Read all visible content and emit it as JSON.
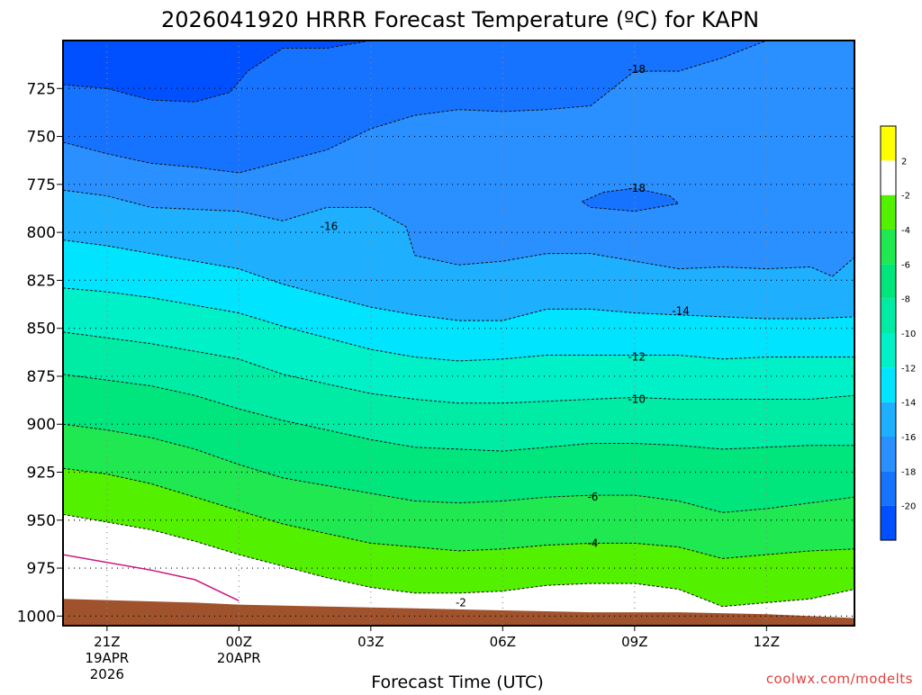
{
  "title": "2026041920 HRRR Forecast Temperature (ºC) for KAPN",
  "credit": "coolwx.com/modelts",
  "chart_data": {
    "type": "contour",
    "title": "2026041920 HRRR Forecast Temperature (ºC) for KAPN",
    "xlabel": "Forecast Time (UTC)",
    "ylabel": "",
    "x_unit": "hours after 19APR2026 20Z",
    "xlim": [
      0,
      18
    ],
    "y_unit": "hPa",
    "ylim": [
      1005,
      700
    ],
    "grid": true,
    "y_ticks": [
      725,
      750,
      775,
      800,
      825,
      850,
      875,
      900,
      925,
      950,
      975,
      1000
    ],
    "x_ticks": [
      {
        "t": 1,
        "label": "21Z",
        "sub": [
          "19APR",
          "2026"
        ]
      },
      {
        "t": 4,
        "label": "00Z",
        "sub": [
          "20APR"
        ]
      },
      {
        "t": 7,
        "label": "03Z",
        "sub": []
      },
      {
        "t": 10,
        "label": "06Z",
        "sub": []
      },
      {
        "t": 13,
        "label": "09Z",
        "sub": []
      },
      {
        "t": 16,
        "label": "12Z",
        "sub": []
      }
    ],
    "colorbar": {
      "levels": [
        -22,
        -20,
        -18,
        -16,
        -14,
        -12,
        -10,
        -8,
        -6,
        -4,
        -2,
        2,
        4
      ],
      "colors": [
        "#0050ff",
        "#1673ff",
        "#2a90ff",
        "#1eb0ff",
        "#00e4ff",
        "#00f0c8",
        "#00eca4",
        "#00e67c",
        "#20e850",
        "#53f000",
        "#ffffff",
        "#ffff00"
      ],
      "labels": [
        "2",
        "-2",
        "-4",
        "-6",
        "-8",
        "-10",
        "-12",
        "-14",
        "-16",
        "-18",
        "-20"
      ]
    },
    "contours": [
      {
        "value": -20,
        "points": [
          [
            0,
            723
          ],
          [
            1,
            725
          ],
          [
            2,
            731
          ],
          [
            3,
            732
          ],
          [
            3.8,
            727
          ],
          [
            4.2,
            716
          ],
          [
            5,
            704
          ],
          [
            6,
            704
          ],
          [
            7,
            700
          ]
        ]
      },
      {
        "value": -18,
        "points": [
          [
            0,
            753
          ],
          [
            1,
            759
          ],
          [
            2,
            764
          ],
          [
            3,
            766
          ],
          [
            4,
            769
          ],
          [
            5,
            763
          ],
          [
            6,
            757
          ],
          [
            7,
            746
          ],
          [
            8,
            739
          ],
          [
            9,
            736
          ],
          [
            10,
            737
          ],
          [
            11,
            736
          ],
          [
            12,
            734
          ],
          [
            13,
            716
          ],
          [
            14,
            716
          ],
          [
            15,
            709
          ],
          [
            16,
            700
          ]
        ]
      },
      {
        "value": -18,
        "closed": true,
        "points": [
          [
            11.8,
            784
          ],
          [
            12.3,
            779
          ],
          [
            13,
            777
          ],
          [
            13.8,
            781
          ],
          [
            14,
            785
          ],
          [
            13.5,
            787
          ],
          [
            13,
            789
          ],
          [
            12.5,
            788
          ],
          [
            12,
            787
          ],
          [
            11.8,
            784
          ]
        ]
      },
      {
        "value": -16,
        "points": [
          [
            0,
            778
          ],
          [
            1,
            781
          ],
          [
            2,
            787
          ],
          [
            3,
            788
          ],
          [
            4,
            789
          ],
          [
            4.8,
            793
          ],
          [
            5,
            794
          ],
          [
            6,
            787
          ],
          [
            7,
            787
          ],
          [
            7.8,
            797
          ],
          [
            8,
            812
          ],
          [
            9,
            817
          ],
          [
            10,
            815
          ],
          [
            11,
            811
          ],
          [
            12,
            811
          ],
          [
            13,
            815
          ],
          [
            14,
            819
          ],
          [
            15,
            818
          ],
          [
            16,
            819
          ],
          [
            17,
            818
          ],
          [
            17.5,
            823
          ],
          [
            18,
            813
          ]
        ]
      },
      {
        "value": -14,
        "points": [
          [
            0,
            804
          ],
          [
            1,
            807
          ],
          [
            2,
            811
          ],
          [
            3,
            815
          ],
          [
            4,
            819
          ],
          [
            5,
            827
          ],
          [
            6,
            833
          ],
          [
            7,
            839
          ],
          [
            8,
            843
          ],
          [
            9,
            846
          ],
          [
            10,
            846
          ],
          [
            11,
            840
          ],
          [
            12,
            840
          ],
          [
            13,
            842
          ],
          [
            14,
            843
          ],
          [
            15,
            844
          ],
          [
            16,
            845
          ],
          [
            17,
            845
          ],
          [
            18,
            844
          ]
        ]
      },
      {
        "value": -12,
        "points": [
          [
            0,
            829
          ],
          [
            1,
            831
          ],
          [
            2,
            834
          ],
          [
            3,
            838
          ],
          [
            4,
            842
          ],
          [
            5,
            849
          ],
          [
            6,
            855
          ],
          [
            7,
            861
          ],
          [
            8,
            865
          ],
          [
            9,
            867
          ],
          [
            10,
            866
          ],
          [
            11,
            864
          ],
          [
            12,
            864
          ],
          [
            13,
            864
          ],
          [
            14,
            864
          ],
          [
            15,
            866
          ],
          [
            16,
            865
          ],
          [
            17,
            865
          ],
          [
            18,
            865
          ]
        ]
      },
      {
        "value": -10,
        "points": [
          [
            0,
            852
          ],
          [
            1,
            855
          ],
          [
            2,
            858
          ],
          [
            3,
            862
          ],
          [
            4,
            866
          ],
          [
            5,
            874
          ],
          [
            6,
            879
          ],
          [
            7,
            884
          ],
          [
            8,
            887
          ],
          [
            9,
            889
          ],
          [
            10,
            889
          ],
          [
            11,
            888
          ],
          [
            12,
            887
          ],
          [
            13,
            886
          ],
          [
            14,
            887
          ],
          [
            15,
            887
          ],
          [
            16,
            887
          ],
          [
            17,
            887
          ],
          [
            18,
            885
          ]
        ]
      },
      {
        "value": -8,
        "points": [
          [
            0,
            874
          ],
          [
            1,
            877
          ],
          [
            2,
            880
          ],
          [
            3,
            885
          ],
          [
            4,
            892
          ],
          [
            5,
            898
          ],
          [
            6,
            903
          ],
          [
            7,
            908
          ],
          [
            8,
            912
          ],
          [
            9,
            913
          ],
          [
            10,
            914
          ],
          [
            11,
            912
          ],
          [
            12,
            910
          ],
          [
            13,
            910
          ],
          [
            14,
            911
          ],
          [
            15,
            913
          ],
          [
            16,
            912
          ],
          [
            17,
            911
          ],
          [
            18,
            911
          ]
        ]
      },
      {
        "value": -6,
        "points": [
          [
            0,
            900
          ],
          [
            1,
            903
          ],
          [
            2,
            907
          ],
          [
            3,
            913
          ],
          [
            4,
            921
          ],
          [
            5,
            928
          ],
          [
            6,
            932
          ],
          [
            7,
            936
          ],
          [
            8,
            940
          ],
          [
            9,
            941
          ],
          [
            10,
            940
          ],
          [
            11,
            938
          ],
          [
            12,
            937
          ],
          [
            13,
            937
          ],
          [
            14,
            940
          ],
          [
            15,
            946
          ],
          [
            16,
            944
          ],
          [
            17,
            941
          ],
          [
            18,
            938
          ]
        ]
      },
      {
        "value": -4,
        "points": [
          [
            0,
            923
          ],
          [
            1,
            926
          ],
          [
            2,
            931
          ],
          [
            3,
            938
          ],
          [
            4,
            945
          ],
          [
            5,
            952
          ],
          [
            6,
            957
          ],
          [
            7,
            962
          ],
          [
            8,
            964
          ],
          [
            9,
            966
          ],
          [
            10,
            965
          ],
          [
            11,
            963
          ],
          [
            12,
            962
          ],
          [
            13,
            962
          ],
          [
            14,
            964
          ],
          [
            15,
            970
          ],
          [
            16,
            968
          ],
          [
            17,
            966
          ],
          [
            18,
            965
          ]
        ]
      },
      {
        "value": -2,
        "points": [
          [
            0,
            947
          ],
          [
            1,
            951
          ],
          [
            2,
            955
          ],
          [
            3,
            961
          ],
          [
            4,
            968
          ],
          [
            5,
            974
          ],
          [
            6,
            980
          ],
          [
            7,
            985
          ],
          [
            8,
            988
          ],
          [
            9,
            988
          ],
          [
            10,
            987
          ],
          [
            11,
            984
          ],
          [
            12,
            983
          ],
          [
            13,
            983
          ],
          [
            14,
            986
          ],
          [
            15,
            995
          ],
          [
            16,
            993
          ],
          [
            17,
            991
          ],
          [
            18,
            986
          ]
        ]
      }
    ],
    "contour_labels": [
      {
        "text": "-18",
        "t": 13.05,
        "p": 715
      },
      {
        "text": "-18",
        "t": 13.05,
        "p": 777
      },
      {
        "text": "-16",
        "t": 6.05,
        "p": 797
      },
      {
        "text": "-14",
        "t": 14.05,
        "p": 841
      },
      {
        "text": "-12",
        "t": 13.05,
        "p": 865
      },
      {
        "text": "-10",
        "t": 13.05,
        "p": 887
      },
      {
        "text": "-6",
        "t": 12.05,
        "p": 938
      },
      {
        "text": "-4",
        "t": 12.05,
        "p": 962
      },
      {
        "text": "-2",
        "t": 9.05,
        "p": 993
      }
    ],
    "dewpoint_line": {
      "color": "#cc1a80",
      "points": [
        [
          0,
          968
        ],
        [
          1,
          972
        ],
        [
          2,
          976
        ],
        [
          3,
          981
        ],
        [
          4,
          992
        ]
      ]
    },
    "ground": {
      "color": "#a0522d",
      "top": [
        [
          0,
          991
        ],
        [
          3,
          993
        ],
        [
          4,
          994
        ],
        [
          6,
          995
        ],
        [
          8,
          996
        ],
        [
          10,
          997
        ],
        [
          12,
          998
        ],
        [
          14,
          998
        ],
        [
          16,
          999
        ],
        [
          18,
          1001
        ]
      ],
      "bottom": 1005
    }
  }
}
